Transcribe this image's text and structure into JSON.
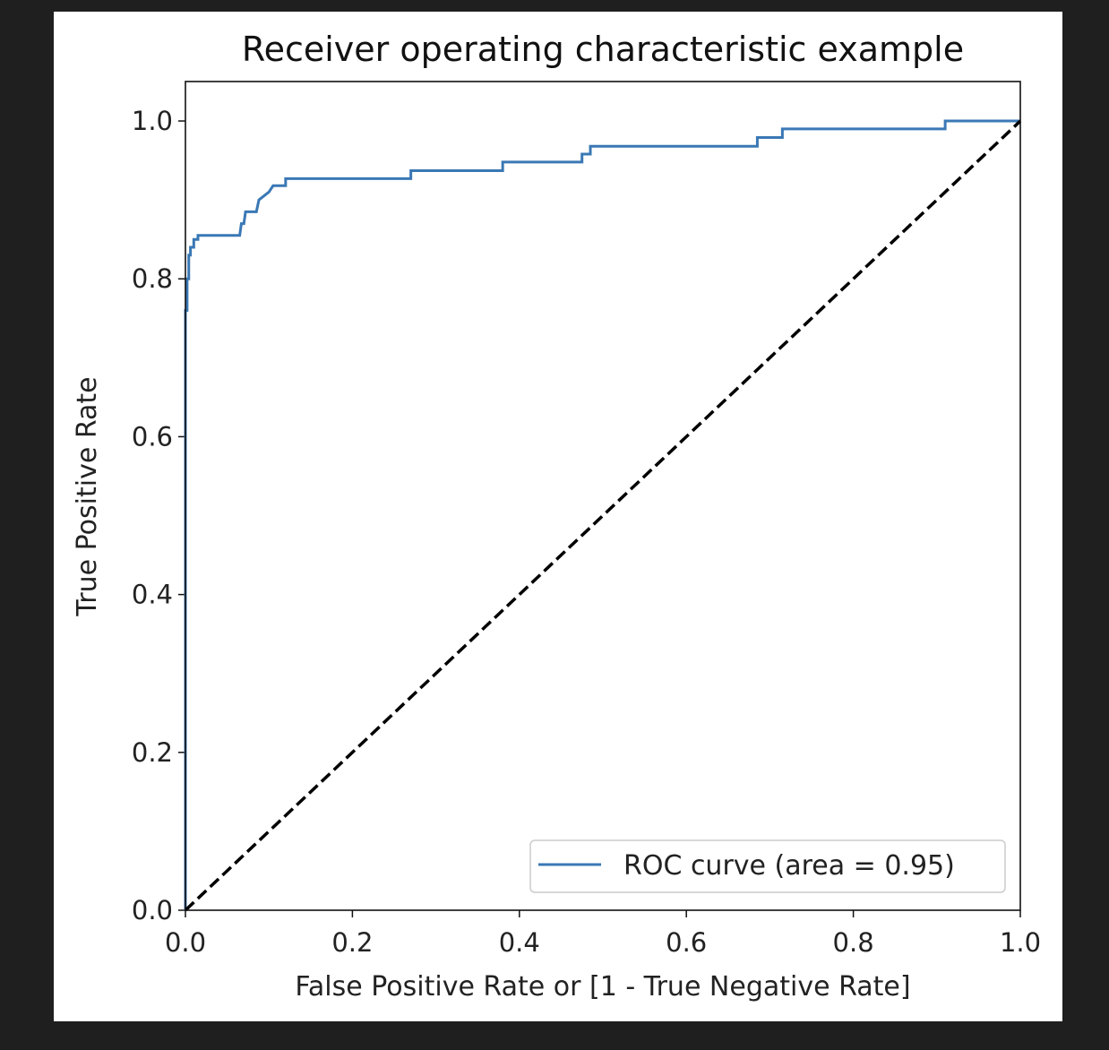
{
  "chart_data": {
    "type": "line",
    "title": "Receiver operating characteristic example",
    "xlabel": "False Positive Rate or [1 - True Negative Rate]",
    "ylabel": "True Positive Rate",
    "xlim": [
      0.0,
      1.0
    ],
    "ylim": [
      0.0,
      1.05
    ],
    "xticks": [
      "0.0",
      "0.2",
      "0.4",
      "0.6",
      "0.8",
      "1.0"
    ],
    "yticks": [
      "0.0",
      "0.2",
      "0.4",
      "0.6",
      "0.8",
      "1.0"
    ],
    "grid": false,
    "legend_placement": "lower-right",
    "series": [
      {
        "name": "ROC curve (area = 0.95)",
        "color": "#3a78b5",
        "style": "solid",
        "step": true,
        "x": [
          0.0,
          0.0,
          0.002,
          0.002,
          0.004,
          0.004,
          0.006,
          0.006,
          0.01,
          0.01,
          0.015,
          0.015,
          0.065,
          0.067,
          0.07,
          0.072,
          0.085,
          0.088,
          0.1,
          0.105,
          0.12,
          0.12,
          0.27,
          0.27,
          0.38,
          0.38,
          0.475,
          0.475,
          0.485,
          0.485,
          0.685,
          0.685,
          0.715,
          0.715,
          0.91,
          0.91,
          1.0
        ],
        "y": [
          0.0,
          0.76,
          0.76,
          0.8,
          0.8,
          0.83,
          0.83,
          0.84,
          0.84,
          0.85,
          0.85,
          0.855,
          0.855,
          0.87,
          0.87,
          0.885,
          0.885,
          0.9,
          0.91,
          0.918,
          0.918,
          0.927,
          0.927,
          0.937,
          0.937,
          0.948,
          0.948,
          0.958,
          0.958,
          0.968,
          0.968,
          0.979,
          0.979,
          0.99,
          0.99,
          1.0,
          1.0
        ]
      },
      {
        "name": "",
        "color": "#000000",
        "style": "dashed",
        "x": [
          0.0,
          1.0
        ],
        "y": [
          0.0,
          1.0
        ]
      }
    ]
  }
}
